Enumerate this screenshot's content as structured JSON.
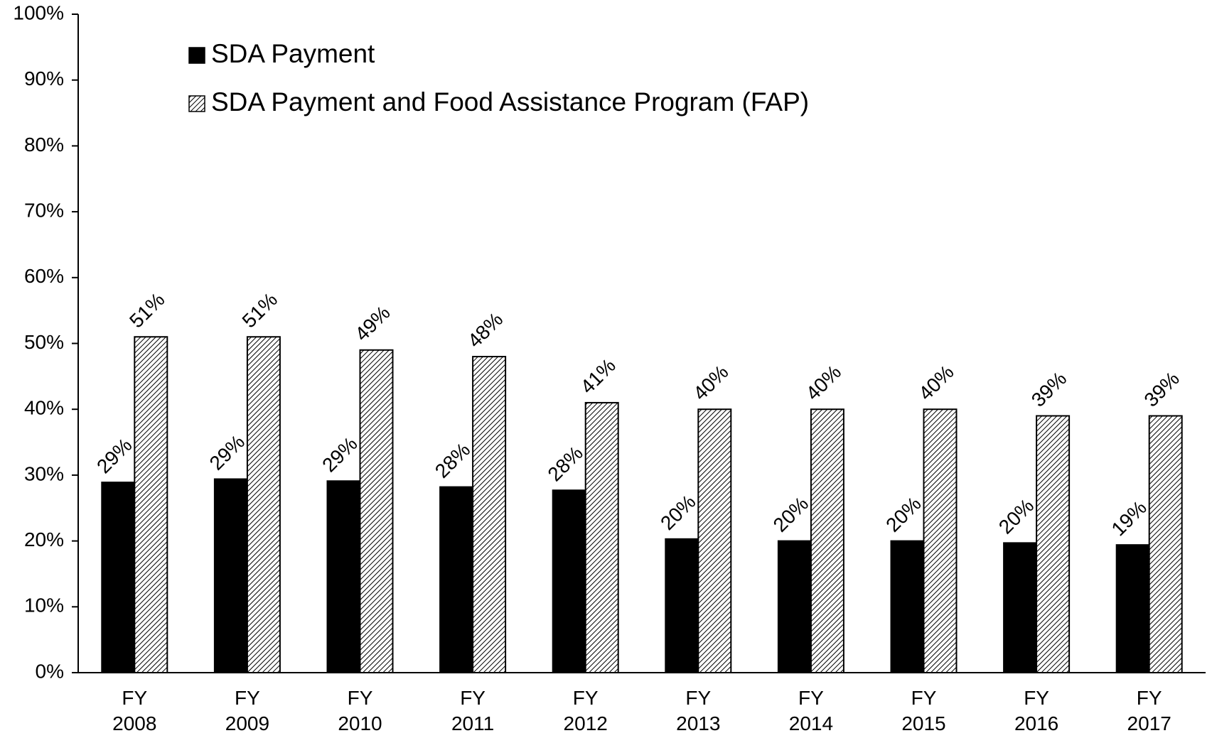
{
  "chart_data": {
    "type": "bar",
    "categories": [
      "FY 2008",
      "FY 2009",
      "FY 2010",
      "FY 2011",
      "FY 2012",
      "FY 2013",
      "FY 2014",
      "FY 2015",
      "FY 2016",
      "FY 2017"
    ],
    "series": [
      {
        "name": "SDA Payment",
        "color": "#000000",
        "values": [
          28.9,
          29.4,
          29.1,
          28.2,
          27.7,
          20.3,
          20.0,
          20.0,
          19.7,
          19.4
        ],
        "value_labels": [
          "29%",
          "29%",
          "29%",
          "28%",
          "28%",
          "20%",
          "20%",
          "20%",
          "20%",
          "19%"
        ]
      },
      {
        "name": "SDA Payment and Food Assistance Program (FAP)",
        "color": "#000000",
        "hatched": true,
        "values": [
          51,
          51,
          49,
          48,
          41,
          40,
          40,
          40,
          39,
          39
        ],
        "value_labels": [
          "51%",
          "51%",
          "49%",
          "48%",
          "41%",
          "40%",
          "40%",
          "40%",
          "39%",
          "39%"
        ]
      }
    ],
    "ylim": [
      0,
      100
    ],
    "yticks": [
      {
        "value": 0,
        "label": "0%"
      },
      {
        "value": 10,
        "label": "10%"
      },
      {
        "value": 20,
        "label": "20%"
      },
      {
        "value": 30,
        "label": "30%"
      },
      {
        "value": 40,
        "label": "40%"
      },
      {
        "value": 50,
        "label": "50%"
      },
      {
        "value": 60,
        "label": "60%"
      },
      {
        "value": 70,
        "label": "70%"
      },
      {
        "value": 80,
        "label": "80%"
      },
      {
        "value": 90,
        "label": "90%"
      },
      {
        "value": 100,
        "label": "100%"
      }
    ],
    "grid": false,
    "legend": "upper left"
  }
}
